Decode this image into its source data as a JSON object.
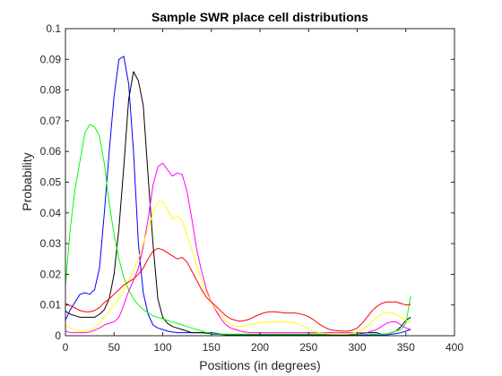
{
  "chart_data": {
    "type": "line",
    "title": "Sample SWR place cell distributions",
    "xlabel": "Positions (in degrees)",
    "ylabel": "Probability",
    "xlim": [
      0,
      400
    ],
    "ylim": [
      0,
      0.1
    ],
    "xticks": [
      0,
      50,
      100,
      150,
      200,
      250,
      300,
      350,
      400
    ],
    "yticks": [
      0,
      0.01,
      0.02,
      0.03,
      0.04,
      0.05,
      0.06,
      0.07,
      0.08,
      0.09,
      0.1
    ],
    "xtick_labels": [
      "0",
      "50",
      "100",
      "150",
      "200",
      "250",
      "300",
      "350",
      "400"
    ],
    "ytick_labels": [
      "0",
      "0.01",
      "0.02",
      "0.03",
      "0.04",
      "0.05",
      "0.06",
      "0.07",
      "0.08",
      "0.09",
      "0.1"
    ],
    "grid": false,
    "legend": "none",
    "x": [
      0,
      5,
      10,
      15,
      20,
      25,
      30,
      35,
      40,
      45,
      50,
      55,
      60,
      65,
      70,
      75,
      80,
      85,
      90,
      95,
      100,
      105,
      110,
      115,
      120,
      125,
      130,
      135,
      140,
      145,
      150,
      155,
      160,
      165,
      170,
      175,
      180,
      185,
      190,
      195,
      200,
      205,
      210,
      215,
      220,
      225,
      230,
      235,
      240,
      245,
      250,
      255,
      260,
      265,
      270,
      275,
      280,
      285,
      290,
      295,
      300,
      305,
      310,
      315,
      320,
      325,
      330,
      335,
      340,
      345,
      350,
      355
    ],
    "series": [
      {
        "color": "#0000ff",
        "values": [
          0.005,
          0.0085,
          0.011,
          0.0135,
          0.014,
          0.0135,
          0.015,
          0.022,
          0.04,
          0.06,
          0.078,
          0.09,
          0.091,
          0.082,
          0.06,
          0.03,
          0.014,
          0.007,
          0.0035,
          0.0025,
          0.002,
          0.0015,
          0.0012,
          0.001,
          0.001,
          0.001,
          0.001,
          0.001,
          0.001,
          0.001,
          0.001,
          0.0008,
          0.0005,
          0.0003,
          0.0002,
          0.0002,
          0.0002,
          0.0002,
          0.0002,
          0.0002,
          0.0002,
          0.0002,
          0.0002,
          0.0002,
          0.0002,
          0.0002,
          0.0002,
          0.0002,
          0.0002,
          0.0002,
          0.0002,
          0.0002,
          0.0002,
          0.0002,
          0.0002,
          0.0002,
          0.0002,
          0.0002,
          0.0002,
          0.0002,
          0.0002,
          0.0002,
          0.0002,
          0.0002,
          0.0002,
          0.0002,
          0.0002,
          0.0005,
          0.0007,
          0.001,
          0.0015,
          0.002
        ]
      },
      {
        "color": "#000000",
        "values": [
          0.008,
          0.007,
          0.0065,
          0.006,
          0.006,
          0.006,
          0.006,
          0.007,
          0.0085,
          0.012,
          0.02,
          0.035,
          0.055,
          0.077,
          0.086,
          0.083,
          0.075,
          0.052,
          0.03,
          0.012,
          0.006,
          0.004,
          0.003,
          0.0025,
          0.002,
          0.0015,
          0.001,
          0.001,
          0.001,
          0.0008,
          0.0006,
          0.0005,
          0.0004,
          0.0003,
          0.0003,
          0.0003,
          0.0003,
          0.0003,
          0.0003,
          0.0003,
          0.0003,
          0.0003,
          0.0003,
          0.0003,
          0.0003,
          0.0003,
          0.0003,
          0.0003,
          0.0003,
          0.0003,
          0.0003,
          0.0003,
          0.0003,
          0.0003,
          0.0003,
          0.0003,
          0.0003,
          0.0003,
          0.0003,
          0.0003,
          0.0005,
          0.0008,
          0.001,
          0.001,
          0.001,
          0.0005,
          0.0005,
          0.001,
          0.0015,
          0.003,
          0.005,
          0.006
        ]
      },
      {
        "color": "#00ff00",
        "values": [
          0.0165,
          0.035,
          0.048,
          0.057,
          0.066,
          0.0688,
          0.068,
          0.065,
          0.056,
          0.043,
          0.033,
          0.025,
          0.019,
          0.015,
          0.012,
          0.01,
          0.0085,
          0.0075,
          0.0065,
          0.006,
          0.0055,
          0.005,
          0.0045,
          0.004,
          0.0035,
          0.003,
          0.0025,
          0.002,
          0.0015,
          0.001,
          0.0008,
          0.0006,
          0.0005,
          0.0005,
          0.0005,
          0.0005,
          0.0005,
          0.0005,
          0.0005,
          0.0005,
          0.0005,
          0.0005,
          0.0005,
          0.0005,
          0.0005,
          0.0005,
          0.0005,
          0.0005,
          0.0005,
          0.0005,
          0.0005,
          0.0005,
          0.0005,
          0.0005,
          0.0005,
          0.0005,
          0.0005,
          0.0005,
          0.0005,
          0.0005,
          0.0005,
          0.0005,
          0.0005,
          0.0005,
          0.0005,
          0.0005,
          0.0005,
          0.001,
          0.0015,
          0.002,
          0.004,
          0.013
        ]
      },
      {
        "color": "#ff00ff",
        "values": [
          0.0015,
          0.001,
          0.001,
          0.001,
          0.001,
          0.0012,
          0.0018,
          0.0025,
          0.0035,
          0.004,
          0.0045,
          0.006,
          0.01,
          0.0145,
          0.018,
          0.022,
          0.029,
          0.038,
          0.049,
          0.055,
          0.0562,
          0.054,
          0.052,
          0.053,
          0.0525,
          0.047,
          0.038,
          0.028,
          0.021,
          0.015,
          0.011,
          0.008,
          0.0055,
          0.0035,
          0.0025,
          0.002,
          0.0015,
          0.0012,
          0.001,
          0.001,
          0.001,
          0.001,
          0.001,
          0.001,
          0.001,
          0.001,
          0.001,
          0.001,
          0.001,
          0.001,
          0.001,
          0.001,
          0.001,
          0.001,
          0.001,
          0.001,
          0.001,
          0.001,
          0.001,
          0.001,
          0.001,
          0.001,
          0.001,
          0.0015,
          0.002,
          0.003,
          0.004,
          0.0045,
          0.0045,
          0.0035,
          0.0025,
          0.002
        ]
      },
      {
        "color": "#ffff00",
        "values": [
          0.0035,
          0.0025,
          0.0018,
          0.0015,
          0.0015,
          0.0018,
          0.0025,
          0.004,
          0.006,
          0.008,
          0.01,
          0.012,
          0.0145,
          0.018,
          0.021,
          0.025,
          0.03,
          0.035,
          0.04,
          0.0437,
          0.0435,
          0.041,
          0.038,
          0.039,
          0.0375,
          0.033,
          0.028,
          0.023,
          0.018,
          0.014,
          0.011,
          0.0085,
          0.0065,
          0.0048,
          0.0035,
          0.003,
          0.003,
          0.0032,
          0.0035,
          0.004,
          0.0043,
          0.0045,
          0.0045,
          0.0045,
          0.0045,
          0.0045,
          0.0045,
          0.0042,
          0.0037,
          0.003,
          0.0022,
          0.0015,
          0.001,
          0.0008,
          0.0006,
          0.0005,
          0.0005,
          0.0005,
          0.0005,
          0.0008,
          0.0012,
          0.0018,
          0.003,
          0.0045,
          0.006,
          0.007,
          0.0075,
          0.0075,
          0.007,
          0.006,
          0.005,
          0.0045
        ]
      },
      {
        "color": "#ff0000",
        "values": [
          0.0105,
          0.0098,
          0.009,
          0.0082,
          0.0078,
          0.0078,
          0.0082,
          0.0092,
          0.0108,
          0.012,
          0.0135,
          0.015,
          0.0165,
          0.0175,
          0.0185,
          0.02,
          0.022,
          0.025,
          0.0275,
          0.0285,
          0.028,
          0.027,
          0.026,
          0.025,
          0.0255,
          0.024,
          0.021,
          0.018,
          0.015,
          0.0125,
          0.011,
          0.0095,
          0.008,
          0.0065,
          0.0055,
          0.005,
          0.0047,
          0.005,
          0.0055,
          0.0063,
          0.007,
          0.0075,
          0.0078,
          0.0078,
          0.0076,
          0.0074,
          0.0074,
          0.0074,
          0.0072,
          0.0068,
          0.0062,
          0.0052,
          0.004,
          0.003,
          0.0022,
          0.0018,
          0.0016,
          0.0015,
          0.0015,
          0.0018,
          0.0025,
          0.004,
          0.006,
          0.008,
          0.0095,
          0.0105,
          0.011,
          0.011,
          0.011,
          0.0105,
          0.01,
          0.0102
        ]
      }
    ]
  }
}
